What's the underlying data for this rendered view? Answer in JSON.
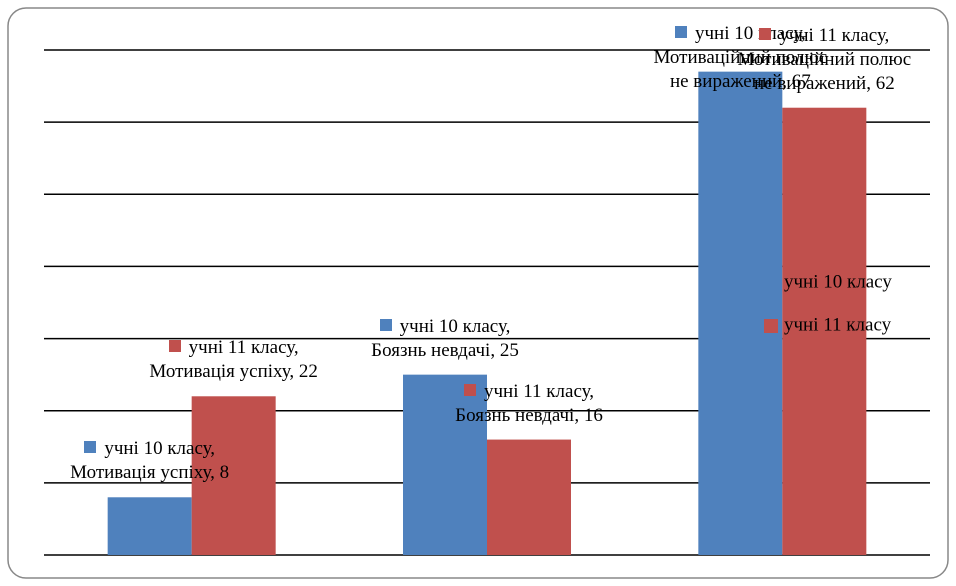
{
  "chart_data": {
    "type": "bar",
    "categories": [
      null,
      null,
      null
    ],
    "series": [
      {
        "name": "учні 10 класу",
        "color": "#4f81bd",
        "values": [
          8,
          25,
          67
        ],
        "value_labels": [
          "учні 10 класу, Мотивація успіху, 8",
          "учні 10 класу, Боязнь невдачі, 25",
          "учні 10 класу, Мотиваційний полюс не виражений, 67"
        ]
      },
      {
        "name": "учні 11 класу",
        "color": "#c0504d",
        "values": [
          22,
          16,
          62
        ],
        "value_labels": [
          "учні 11 класу, Мотивація успіху, 22",
          "учні 11 класу, Боязнь невдачі, 16",
          "учні 11 класу, Мотиваційний полюс не виражений, 62"
        ]
      }
    ],
    "ylim": [
      0,
      70
    ],
    "yticks": [
      0,
      10,
      20,
      30,
      40,
      50,
      60,
      70
    ],
    "grid": true,
    "legend": "right"
  }
}
